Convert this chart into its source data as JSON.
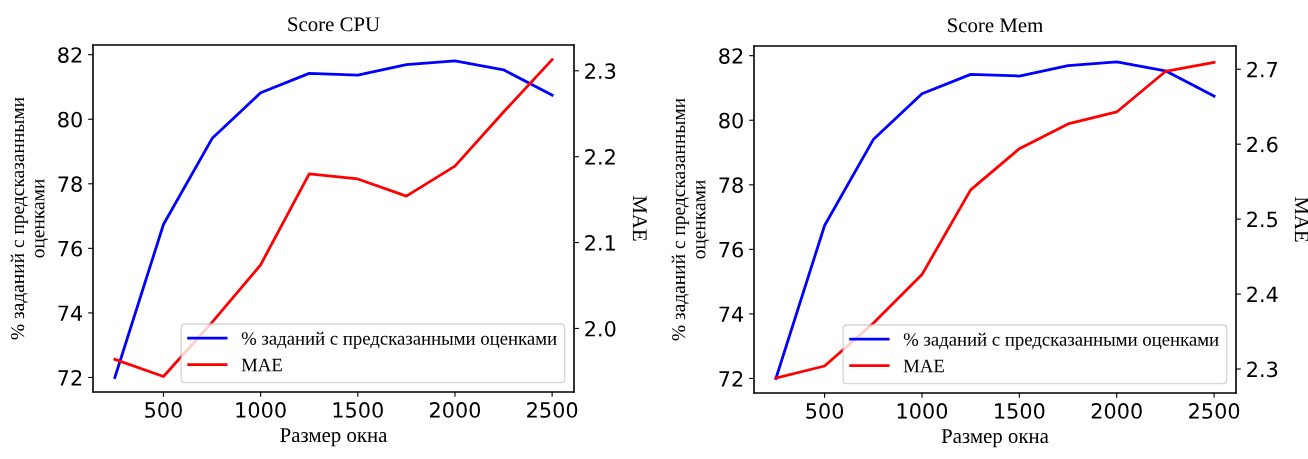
{
  "chart_data": [
    {
      "type": "line",
      "title": "Score CPU",
      "xlabel": "Размер окна",
      "ylabel": "% заданий с предсказанными\nоценками",
      "y2label": "MAE",
      "x": [
        250,
        500,
        750,
        1000,
        1250,
        1500,
        1750,
        2000,
        2250,
        2500
      ],
      "xlim": [
        137.5,
        2612.5
      ],
      "xticks": [
        500,
        1000,
        1500,
        2000,
        2500
      ],
      "ylim": [
        71.55,
        82.3
      ],
      "yticks": [
        72,
        74,
        76,
        78,
        80,
        82
      ],
      "y2lim": [
        1.926,
        2.33
      ],
      "y2ticks": [
        {
          "value": 2.0,
          "label": "2.0"
        },
        2.1,
        2.2,
        2.3
      ],
      "legend": "bottom right",
      "grid": false,
      "marker": "none",
      "line_style": "solid",
      "series": [
        {
          "name": "% заданий с предсказанными оценками",
          "color": "#0000ff",
          "values": [
            72.0,
            76.74,
            79.4,
            80.82,
            81.42,
            81.37,
            81.69,
            81.81,
            81.53,
            80.75
          ]
        },
        {
          "name": "MAE",
          "color": "#ff0000",
          "axis": "y2",
          "values": [
            1.964,
            1.944,
            2.007,
            2.074,
            2.18,
            2.174,
            2.154,
            2.189,
            2.252,
            2.313
          ]
        }
      ]
    },
    {
      "type": "line",
      "title": "Score Mem",
      "xlabel": "Размер окна",
      "ylabel": "% заданий с предсказанными\nоценками",
      "y2label": "MAE",
      "x": [
        250,
        500,
        750,
        1000,
        1250,
        1500,
        1750,
        2000,
        2250,
        2500
      ],
      "xlim": [
        137.5,
        2612.5
      ],
      "xticks": [
        500,
        1000,
        1500,
        2000,
        2500
      ],
      "ylim": [
        71.55,
        82.3
      ],
      "yticks": [
        72,
        74,
        76,
        78,
        80,
        82
      ],
      "y2lim": [
        2.268,
        2.731
      ],
      "y2ticks": [
        2.3,
        2.4,
        2.5,
        2.6,
        2.7
      ],
      "legend": "bottom right",
      "grid": false,
      "marker": "none",
      "line_style": "solid",
      "series": [
        {
          "name": "% заданий с предсказанными оценками",
          "color": "#0000ff",
          "values": [
            72.0,
            76.74,
            79.4,
            80.82,
            81.42,
            81.37,
            81.69,
            81.81,
            81.53,
            80.75
          ]
        },
        {
          "name": "MAE",
          "color": "#ff0000",
          "axis": "y2",
          "values": [
            2.288,
            2.304,
            2.361,
            2.426,
            2.539,
            2.594,
            2.627,
            2.643,
            2.697,
            2.709
          ]
        }
      ]
    }
  ]
}
